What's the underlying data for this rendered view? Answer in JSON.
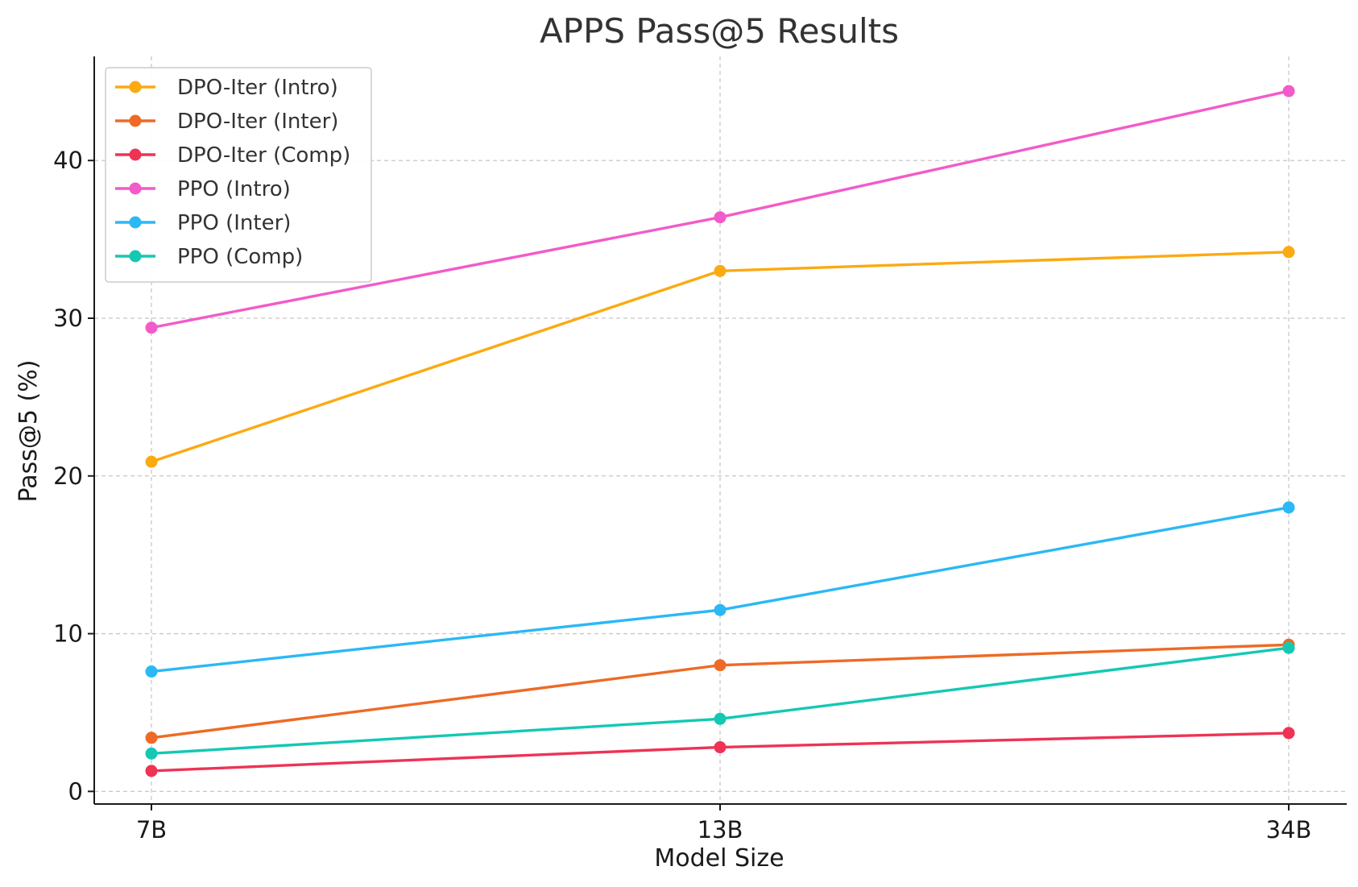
{
  "chart_data": {
    "type": "line",
    "title": "APPS Pass@5 Results",
    "xlabel": "Model Size",
    "ylabel": "Pass@5 (%)",
    "categories": [
      "7B",
      "13B",
      "34B"
    ],
    "yticks": [
      0,
      10,
      20,
      30,
      40
    ],
    "ylim": [
      -0.8,
      46.6
    ],
    "grid": true,
    "legend_position": "top-left",
    "series": [
      {
        "name": "DPO-Iter (Intro)",
        "color": "#FBAA12",
        "values": [
          20.9,
          33.0,
          34.2
        ]
      },
      {
        "name": "DPO-Iter (Inter)",
        "color": "#EE6A26",
        "values": [
          3.4,
          8.0,
          9.3
        ]
      },
      {
        "name": "DPO-Iter (Comp)",
        "color": "#EE3355",
        "values": [
          1.3,
          2.8,
          3.7
        ]
      },
      {
        "name": "PPO (Intro)",
        "color": "#F25BC9",
        "values": [
          29.4,
          36.4,
          44.4
        ]
      },
      {
        "name": "PPO (Inter)",
        "color": "#2BB8F5",
        "values": [
          7.6,
          11.5,
          18.0
        ]
      },
      {
        "name": "PPO (Comp)",
        "color": "#14C8B4",
        "values": [
          2.4,
          4.6,
          9.1
        ]
      }
    ]
  }
}
